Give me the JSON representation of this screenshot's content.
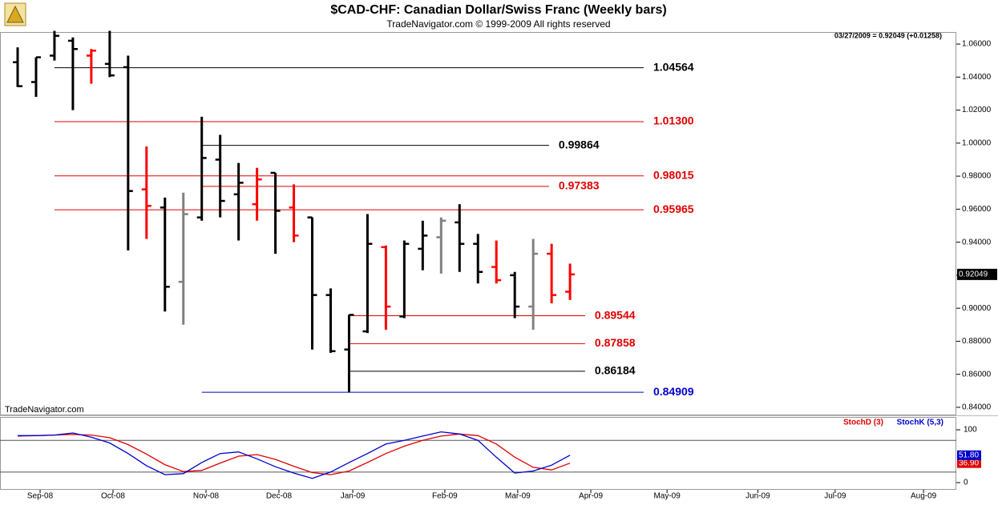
{
  "header": {
    "title": "$CAD-CHF:  Canadian Dollar/Swiss Franc  (Weekly bars)",
    "subtitle": "TradeNavigator.com © 1999-2009 All rights reserved",
    "quote": "03/27/2009 = 0.92049 (+0.01258)",
    "watermark": "TradeNavigator.com"
  },
  "chart_data": [
    {
      "type": "ohlc",
      "x": [
        0,
        1,
        2,
        3,
        4,
        5,
        6,
        7,
        8,
        9,
        10,
        11,
        12,
        13,
        14,
        15,
        16,
        17,
        18,
        19,
        20,
        21,
        22,
        23,
        24,
        25,
        26,
        27,
        28,
        29,
        30
      ],
      "open": [
        1.049,
        1.037,
        1.053,
        1.062,
        1.053,
        1.048,
        1.046,
        0.972,
        0.961,
        0.916,
        0.955,
        0.99,
        0.969,
        0.963,
        0.982,
        0.961,
        0.955,
        0.908,
        0.875,
        0.886,
        0.937,
        0.895,
        0.936,
        0.943,
        0.952,
        0.939,
        0.925,
        0.92,
        0.901,
        0.933,
        0.91
      ],
      "high": [
        1.058,
        1.052,
        1.068,
        1.064,
        1.057,
        1.068,
        1.053,
        0.998,
        0.967,
        0.97,
        1.016,
        1.005,
        0.988,
        0.985,
        0.982,
        0.975,
        0.955,
        0.912,
        0.896,
        0.957,
        0.938,
        0.941,
        0.953,
        0.955,
        0.963,
        0.945,
        0.941,
        0.922,
        0.942,
        0.939,
        0.927
      ],
      "low": [
        1.034,
        1.028,
        1.05,
        1.02,
        1.036,
        1.04,
        0.935,
        0.942,
        0.898,
        0.89,
        0.953,
        0.955,
        0.941,
        0.953,
        0.933,
        0.94,
        0.875,
        0.873,
        0.849,
        0.885,
        0.887,
        0.894,
        0.923,
        0.921,
        0.922,
        0.915,
        0.915,
        0.894,
        0.887,
        0.903,
        0.905
      ],
      "close": [
        1.0345,
        1.052,
        1.065,
        1.057,
        1.056,
        1.041,
        0.971,
        0.962,
        0.913,
        0.957,
        0.991,
        0.965,
        0.976,
        0.978,
        0.959,
        0.944,
        0.908,
        0.874,
        0.896,
        0.939,
        0.901,
        0.939,
        0.944,
        0.953,
        0.939,
        0.922,
        0.917,
        0.901,
        0.933,
        0.908,
        0.9205
      ],
      "bar_colors": [
        "#000000",
        "#000000",
        "#000000",
        "#000000",
        "#ff0000",
        "#000000",
        "#000000",
        "#ff0000",
        "#000000",
        "#808080",
        "#000000",
        "#000000",
        "#000000",
        "#ff0000",
        "#000000",
        "#ff0000",
        "#000000",
        "#000000",
        "#000000",
        "#000000",
        "#ff0000",
        "#000000",
        "#000000",
        "#808080",
        "#000000",
        "#000000",
        "#ff0000",
        "#000000",
        "#808080",
        "#ff0000",
        "#ff0000"
      ],
      "xlim": [
        -0.958,
        50.98
      ],
      "ylim": [
        0.8356,
        1.0673
      ],
      "yticks": [
        {
          "value": 0.84,
          "label": "0.84000"
        },
        {
          "value": 0.86,
          "label": "0.86000"
        },
        {
          "value": 0.88,
          "label": "0.88000"
        },
        {
          "value": 0.9,
          "label": "0.90000"
        },
        {
          "value": 0.92,
          "label": "0.92000"
        },
        {
          "value": 0.94,
          "label": "0.94000"
        },
        {
          "value": 0.96,
          "label": "0.96000"
        },
        {
          "value": 0.98,
          "label": "0.98000"
        },
        {
          "value": 1.0,
          "label": "1.00000"
        },
        {
          "value": 1.02,
          "label": "1.02000"
        },
        {
          "value": 1.04,
          "label": "1.04000"
        },
        {
          "value": 1.06,
          "label": "1.06000"
        }
      ],
      "last_price": {
        "value": 0.92049,
        "label": "0.92049"
      },
      "levels": [
        {
          "value": 1.04564,
          "label": "1.04564",
          "color": "#000000",
          "from": 2,
          "to": 34
        },
        {
          "value": 1.013,
          "label": "1.01300",
          "color": "#e00000",
          "from": 2,
          "to": 34
        },
        {
          "value": 0.99864,
          "label": "0.99864",
          "color": "#000000",
          "from": 10,
          "to": 28.86
        },
        {
          "value": 0.98015,
          "label": "0.98015",
          "color": "#e00000",
          "from": 2,
          "to": 34
        },
        {
          "value": 0.97383,
          "label": "0.97383",
          "color": "#e00000",
          "from": 10,
          "to": 28.86
        },
        {
          "value": 0.95965,
          "label": "0.95965",
          "color": "#e00000",
          "from": 2,
          "to": 34
        },
        {
          "value": 0.89544,
          "label": "0.89544",
          "color": "#e00000",
          "from": 18,
          "to": 30.82
        },
        {
          "value": 0.87858,
          "label": "0.87858",
          "color": "#e00000",
          "from": 18,
          "to": 30.82
        },
        {
          "value": 0.86184,
          "label": "0.86184",
          "color": "#000000",
          "from": 18,
          "to": 30.82
        },
        {
          "value": 0.84909,
          "label": "0.84909",
          "color": "#0000cc",
          "from": 10,
          "to": 34
        }
      ]
    },
    {
      "type": "line",
      "x": [
        0,
        1,
        2,
        3,
        4,
        5,
        6,
        7,
        8,
        9,
        10,
        11,
        12,
        13,
        14,
        15,
        16,
        17,
        18,
        19,
        20,
        21,
        22,
        23,
        24,
        25,
        26,
        27,
        28,
        29,
        30
      ],
      "series": [
        {
          "name": "StochD (3)",
          "color": "#e00000",
          "values": [
            88,
            89,
            90,
            91,
            90,
            85,
            72,
            54,
            34,
            21,
            23,
            37,
            50,
            53,
            44,
            31,
            19,
            15,
            22,
            38,
            55,
            69,
            80,
            88,
            92,
            89,
            73,
            48,
            29,
            24,
            36.9
          ],
          "last_label": "36.90"
        },
        {
          "name": "StochK (5,3)",
          "color": "#0000cc",
          "values": [
            89,
            89,
            90,
            94,
            86,
            75,
            55,
            32,
            15,
            17,
            38,
            55,
            58,
            45,
            30,
            18,
            8,
            20,
            38,
            55,
            73,
            80,
            88,
            96,
            92,
            80,
            48,
            18,
            22,
            33,
            51.8
          ],
          "last_label": "51.80"
        }
      ],
      "xlim": [
        -0.958,
        50.98
      ],
      "ylim": [
        -13.6,
        122.7
      ],
      "yticks": [
        0,
        100
      ],
      "levels": [
        20,
        80
      ],
      "xticks": [
        {
          "value": 1.22,
          "label": "Sep-08"
        },
        {
          "value": 5.18,
          "label": "Oct-08"
        },
        {
          "value": 10.23,
          "label": "Nov-08"
        },
        {
          "value": 14.19,
          "label": "Dec-08"
        },
        {
          "value": 18.2,
          "label": "Jan-09"
        },
        {
          "value": 23.2,
          "label": "Feb-09"
        },
        {
          "value": 27.16,
          "label": "Mar-09"
        },
        {
          "value": 31.13,
          "label": "Apr-09"
        },
        {
          "value": 35.27,
          "label": "May-09"
        },
        {
          "value": 40.2,
          "label": "Jun-09"
        },
        {
          "value": 44.4,
          "label": "Jul-09"
        },
        {
          "value": 49.2,
          "label": "Aug-09"
        }
      ]
    }
  ]
}
